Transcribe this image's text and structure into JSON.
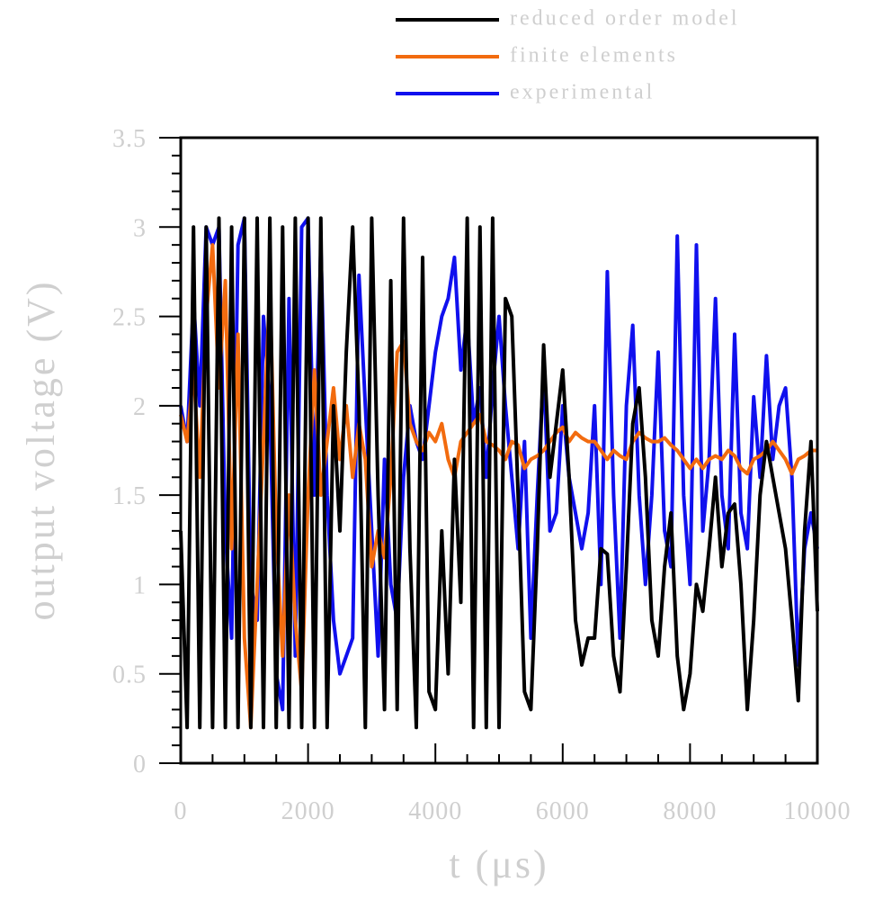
{
  "chart_data": {
    "type": "line",
    "xlabel": "t (μs)",
    "ylabel": "output voltage (V)",
    "xlim": [
      0,
      10000
    ],
    "xticks": [
      0,
      2000,
      4000,
      6000,
      8000,
      10000
    ],
    "ylim": [
      0,
      3.5
    ],
    "yticks": [
      0,
      0.5,
      1,
      1.5,
      2,
      2.5,
      3,
      3.5
    ],
    "legend": "top",
    "x": [
      0,
      100,
      200,
      300,
      400,
      500,
      600,
      700,
      800,
      900,
      1000,
      1100,
      1200,
      1300,
      1400,
      1500,
      1600,
      1700,
      1800,
      1900,
      2000,
      2100,
      2200,
      2300,
      2400,
      2500,
      2600,
      2700,
      2800,
      2900,
      3000,
      3100,
      3200,
      3300,
      3400,
      3500,
      3600,
      3700,
      3800,
      3900,
      4000,
      4100,
      4200,
      4300,
      4400,
      4500,
      4600,
      4700,
      4800,
      4900,
      5000,
      5100,
      5200,
      5300,
      5400,
      5500,
      5600,
      5700,
      5800,
      5900,
      6000,
      6100,
      6200,
      6300,
      6400,
      6500,
      6600,
      6700,
      6800,
      6900,
      7000,
      7100,
      7200,
      7300,
      7400,
      7500,
      7600,
      7700,
      7800,
      7900,
      8000,
      8100,
      8200,
      8300,
      8400,
      8500,
      8600,
      8700,
      8800,
      8900,
      9000,
      9100,
      9200,
      9300,
      9400,
      9500,
      9600,
      9700,
      9800,
      9900,
      10000
    ],
    "series": [
      {
        "name": "reduced order model",
        "color": "#000000",
        "values": [
          1.3,
          0.2,
          3.0,
          0.2,
          3.0,
          0.2,
          3.05,
          0.2,
          3.0,
          0.2,
          3.05,
          0.2,
          3.05,
          0.2,
          3.05,
          0.2,
          3.0,
          0.2,
          3.05,
          0.2,
          3.05,
          0.2,
          3.05,
          0.2,
          2.0,
          1.3,
          2.3,
          3.0,
          2.0,
          0.2,
          3.05,
          1.5,
          0.3,
          2.7,
          0.3,
          3.05,
          1.2,
          0.2,
          2.83,
          0.4,
          0.3,
          1.3,
          0.5,
          1.7,
          0.9,
          3.05,
          0.2,
          3.0,
          0.2,
          3.05,
          0.2,
          2.6,
          2.5,
          1.5,
          0.4,
          0.3,
          1.2,
          2.34,
          1.6,
          1.9,
          2.2,
          1.6,
          0.8,
          0.55,
          0.7,
          0.7,
          1.2,
          1.17,
          0.6,
          0.4,
          1.1,
          1.9,
          2.1,
          1.6,
          0.8,
          0.6,
          1.1,
          1.4,
          0.6,
          0.3,
          0.5,
          1.0,
          0.85,
          1.2,
          1.6,
          1.1,
          1.4,
          1.45,
          1.0,
          0.3,
          0.8,
          1.5,
          1.8,
          1.6,
          1.4,
          1.2,
          0.8,
          0.35,
          1.3,
          1.8,
          0.85
        ]
      },
      {
        "name": "finite elements",
        "color": "#f26b0f",
        "values": [
          1.95,
          1.8,
          2.2,
          1.6,
          2.5,
          2.9,
          2.1,
          2.7,
          1.2,
          2.4,
          0.7,
          0.2,
          1.0,
          1.8,
          2.67,
          1.3,
          0.6,
          1.5,
          0.8,
          0.4,
          1.5,
          2.2,
          1.5,
          1.8,
          2.1,
          1.7,
          2.0,
          1.6,
          1.9,
          1.7,
          1.1,
          1.3,
          1.15,
          1.6,
          2.3,
          2.36,
          1.9,
          1.8,
          1.75,
          1.85,
          1.8,
          1.9,
          1.7,
          1.6,
          1.8,
          1.85,
          1.9,
          1.95,
          1.8,
          1.78,
          1.75,
          1.7,
          1.8,
          1.78,
          1.65,
          1.7,
          1.72,
          1.75,
          1.8,
          1.85,
          1.88,
          1.8,
          1.85,
          1.82,
          1.8,
          1.8,
          1.75,
          1.7,
          1.75,
          1.72,
          1.7,
          1.8,
          1.85,
          1.82,
          1.8,
          1.8,
          1.82,
          1.78,
          1.75,
          1.7,
          1.65,
          1.7,
          1.65,
          1.7,
          1.72,
          1.7,
          1.75,
          1.72,
          1.65,
          1.62,
          1.7,
          1.72,
          1.75,
          1.8,
          1.75,
          1.7,
          1.62,
          1.7,
          1.72,
          1.75,
          1.75
        ]
      },
      {
        "name": "experimental",
        "color": "#1010ee",
        "values": [
          2.0,
          1.8,
          2.6,
          2.0,
          3.0,
          2.9,
          3.0,
          1.3,
          0.7,
          2.9,
          3.05,
          1.0,
          0.8,
          2.5,
          2.0,
          0.5,
          0.3,
          2.6,
          0.6,
          3.0,
          3.05,
          1.5,
          2.9,
          1.5,
          0.8,
          0.5,
          0.6,
          0.7,
          2.73,
          2.0,
          1.3,
          0.6,
          1.7,
          1.0,
          0.8,
          1.6,
          2.0,
          1.8,
          1.7,
          2.0,
          2.3,
          2.5,
          2.6,
          2.83,
          2.2,
          2.5,
          1.9,
          2.1,
          1.6,
          2.1,
          2.5,
          2.0,
          1.6,
          1.2,
          1.8,
          0.7,
          1.5,
          2.2,
          1.3,
          1.4,
          2.0,
          1.6,
          1.4,
          1.2,
          1.4,
          2.0,
          1.0,
          2.75,
          1.5,
          0.7,
          2.0,
          2.45,
          1.5,
          1.0,
          1.5,
          2.3,
          1.3,
          1.1,
          2.95,
          1.5,
          1.0,
          2.9,
          1.3,
          1.7,
          2.6,
          1.5,
          1.2,
          2.4,
          1.4,
          1.2,
          2.05,
          1.6,
          2.28,
          1.7,
          2.0,
          2.1,
          1.6,
          0.55,
          1.2,
          1.4,
          1.2
        ]
      }
    ]
  }
}
